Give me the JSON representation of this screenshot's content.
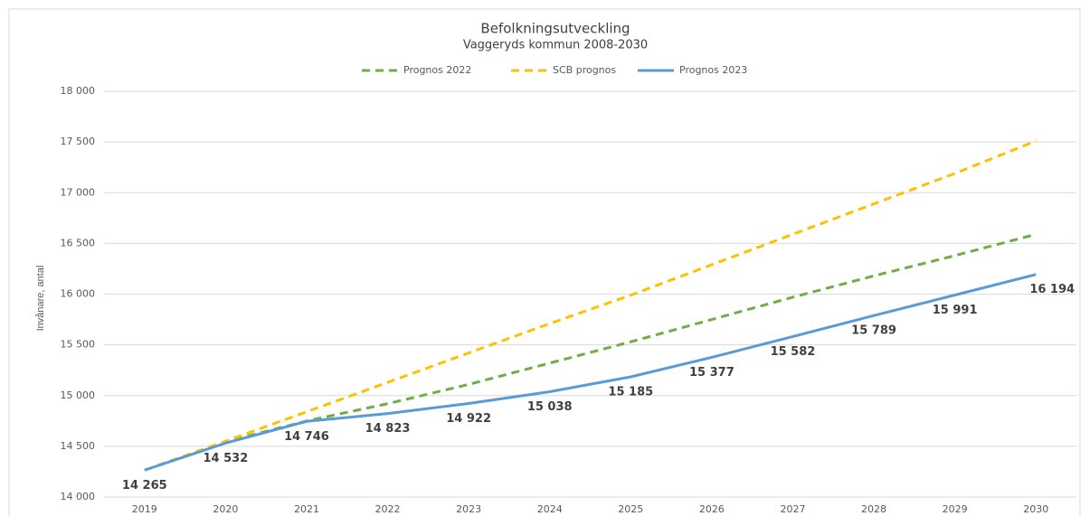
{
  "chart_data": {
    "type": "line",
    "title": "Befolkningsutveckling",
    "subtitle": "Vaggeryds kommun 2008-2030",
    "y_label": "Invånare, antal",
    "categories": [
      "2019",
      "2020",
      "2021",
      "2022",
      "2023",
      "2024",
      "2025",
      "2026",
      "2027",
      "2028",
      "2029",
      "2030"
    ],
    "series": [
      {
        "name": "Prognos 2022",
        "color": "#70ad47",
        "line_style": "dashed",
        "values": [
          14265,
          14545,
          14750,
          14920,
          15110,
          15320,
          15530,
          15750,
          15970,
          16180,
          16380,
          16590
        ]
      },
      {
        "name": "SCB prognos",
        "color": "#ffc000",
        "line_style": "dashed",
        "values": [
          14265,
          14550,
          14840,
          15130,
          15420,
          15710,
          15990,
          16290,
          16590,
          16890,
          17190,
          17510
        ]
      },
      {
        "name": "Prognos 2023",
        "color": "#5b9bd5",
        "line_style": "solid",
        "values": [
          14265,
          14532,
          14746,
          14823,
          14922,
          15038,
          15185,
          15377,
          15582,
          15789,
          15991,
          16194
        ],
        "value_labels": [
          "14 265",
          "14 532",
          "14 746",
          "14 823",
          "14 922",
          "15 038",
          "15 185",
          "15 377",
          "15 582",
          "15 789",
          "15 991",
          "16 194"
        ]
      }
    ],
    "ylim": [
      14000,
      18000
    ],
    "yticks": [
      {
        "value": 14000,
        "label": "14 000"
      },
      {
        "value": 14500,
        "label": "14 500"
      },
      {
        "value": 15000,
        "label": "15 000"
      },
      {
        "value": 15500,
        "label": "15 500"
      },
      {
        "value": 16000,
        "label": "16 000"
      },
      {
        "value": 16500,
        "label": "16 500"
      },
      {
        "value": 17000,
        "label": "17 000"
      },
      {
        "value": 17500,
        "label": "17 500"
      },
      {
        "value": 18000,
        "label": "18 000"
      }
    ],
    "grid": true,
    "legend": "top"
  }
}
